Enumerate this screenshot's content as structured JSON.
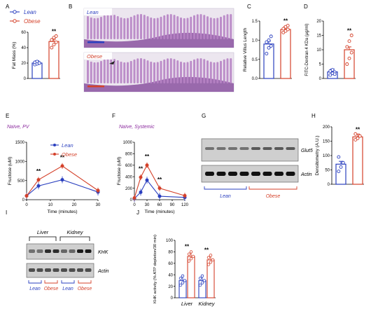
{
  "colors": {
    "lean": "#2a3fbf",
    "obese": "#d4412a",
    "purple": "#8b2a9e",
    "axis": "#000000",
    "tissue": "#b783c4",
    "tissue_dark": "#7d3f96",
    "blot_bg": "#cfcfcf"
  },
  "panels": {
    "A": "A",
    "B": "B",
    "C": "C",
    "D": "D",
    "E": "E",
    "F": "F",
    "G": "G",
    "H": "H",
    "I": "I",
    "J": "J"
  },
  "legend": {
    "lean": "Lean",
    "obese": "Obese"
  },
  "sig": "**",
  "histology": {
    "lean_label": "Lean",
    "obese_label": "Obese"
  },
  "blot_g": {
    "band1": "Glut5",
    "band2": "Actin",
    "group1": "Lean",
    "group2": "Obese"
  },
  "blot_i": {
    "band1": "KHK",
    "band2": "Actin",
    "tissue1": "Liver",
    "tissue2": "Kidney",
    "lanes": [
      "Lean",
      "Obese",
      "Lean",
      "Obese"
    ]
  },
  "chart_data": [
    {
      "panel": "A",
      "type": "bar",
      "categories": [
        "Lean",
        "Obese"
      ],
      "values": [
        20,
        48
      ],
      "ylabel": "Fat Mass (%)",
      "ylim": [
        0,
        60
      ],
      "yticks": [
        0,
        20,
        40,
        60
      ],
      "points": [
        [
          18,
          19,
          20,
          21,
          22,
          20
        ],
        [
          40,
          44,
          47,
          50,
          53,
          55
        ]
      ],
      "sig": [
        false,
        true
      ]
    },
    {
      "panel": "C",
      "type": "bar",
      "categories": [
        "Lean",
        "Obese"
      ],
      "values": [
        0.9,
        1.28
      ],
      "ylabel": "Relative Villus Length",
      "ylim": [
        0,
        1.5
      ],
      "yticks": [
        "0.0",
        "0.5",
        "1.0",
        "1.5"
      ],
      "points": [
        [
          0.65,
          0.8,
          0.85,
          0.95,
          1.0,
          1.1
        ],
        [
          1.2,
          1.24,
          1.28,
          1.3,
          1.35,
          1.38
        ]
      ],
      "sig": [
        false,
        true
      ]
    },
    {
      "panel": "D",
      "type": "bar",
      "categories": [
        "Lean",
        "Obese"
      ],
      "values": [
        2.3,
        10
      ],
      "ylabel": "FITC-Dextran 4 KDa (µg/ml)",
      "ylim": [
        0,
        20
      ],
      "yticks": [
        0,
        5,
        10,
        15,
        20
      ],
      "points": [
        [
          1.2,
          1.8,
          2.2,
          2.6,
          3.0,
          1.5
        ],
        [
          5,
          7,
          9,
          11,
          13,
          15
        ]
      ],
      "sig": [
        false,
        true
      ]
    },
    {
      "panel": "E",
      "type": "line",
      "title": "Naïve, PV",
      "xlabel": "Time (minutes)",
      "ylabel": "Fructose (uM)",
      "xlim": [
        0,
        30
      ],
      "ylim": [
        0,
        1500
      ],
      "xticks": [
        0,
        10,
        20,
        30
      ],
      "yticks": [
        0,
        500,
        1000,
        1500
      ],
      "x": [
        0,
        5,
        15,
        30
      ],
      "series": [
        {
          "name": "Lean",
          "values": [
            100,
            360,
            520,
            200
          ]
        },
        {
          "name": "Obese",
          "values": [
            100,
            520,
            880,
            240
          ]
        }
      ],
      "sig_x": [
        5,
        15
      ]
    },
    {
      "panel": "F",
      "type": "line",
      "title": "Naïve, Systemic",
      "xlabel": "Time (minutes)",
      "ylabel": "Fructose (uM)",
      "xlim": [
        0,
        120
      ],
      "ylim": [
        0,
        1000
      ],
      "xticks": [
        0,
        30,
        60,
        90,
        120
      ],
      "yticks": [
        0,
        200,
        400,
        600,
        800,
        1000
      ],
      "x": [
        0,
        15,
        30,
        60,
        120
      ],
      "series": [
        {
          "name": "Lean",
          "values": [
            20,
            130,
            340,
            60,
            40
          ]
        },
        {
          "name": "Obese",
          "values": [
            30,
            390,
            600,
            200,
            70
          ]
        }
      ],
      "sig_x": [
        15,
        30,
        60
      ]
    },
    {
      "panel": "H",
      "type": "bar",
      "categories": [
        "Lean",
        "Obese"
      ],
      "values": [
        70,
        165
      ],
      "ylabel": "Densitometry (A.U.)",
      "ylim": [
        0,
        200
      ],
      "yticks": [
        0,
        50,
        100,
        150,
        200
      ],
      "points": [
        [
          45,
          60,
          75,
          95
        ],
        [
          155,
          160,
          168,
          175
        ]
      ],
      "sig": [
        false,
        true
      ]
    },
    {
      "panel": "J",
      "type": "bar",
      "categories": [
        "Liver",
        "Kidney"
      ],
      "series": [
        {
          "name": "Lean",
          "values": [
            30,
            30
          ]
        },
        {
          "name": "Obese",
          "values": [
            72,
            66
          ]
        }
      ],
      "ylabel": "KHK activity (% ATP depletion/30 min)",
      "ylim": [
        0,
        100
      ],
      "yticks": [
        0,
        20,
        40,
        60,
        80,
        100
      ],
      "sig": [
        true,
        true
      ]
    }
  ]
}
